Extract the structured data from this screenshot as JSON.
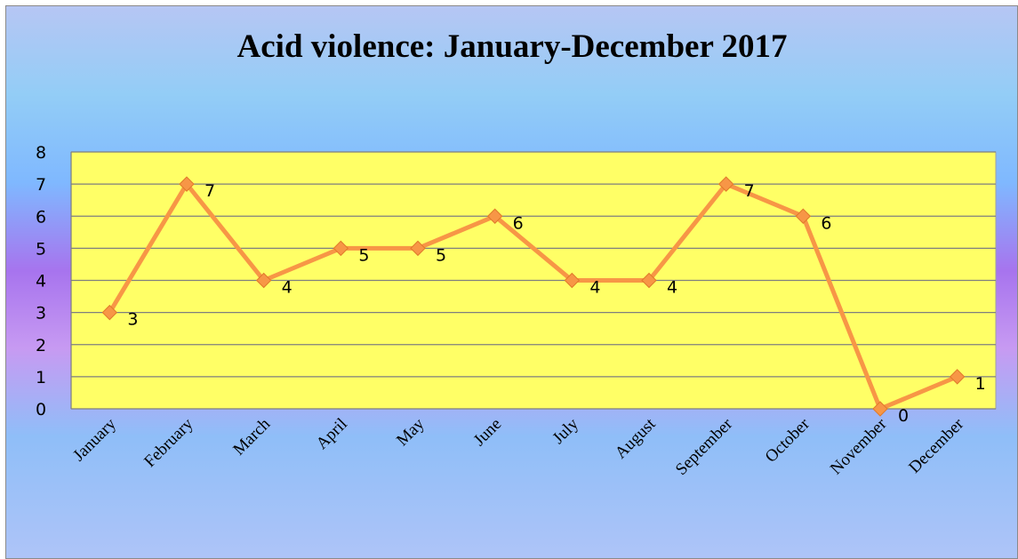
{
  "chart_data": {
    "type": "line",
    "title": "Acid violence: January-December 2017",
    "categories": [
      "January",
      "February",
      "March",
      "April",
      "May",
      "June",
      "July",
      "August",
      "September",
      "October",
      "November",
      "December"
    ],
    "series": [
      {
        "values": [
          3,
          7,
          4,
          5,
          5,
          6,
          4,
          4,
          7,
          6,
          0,
          1
        ]
      }
    ],
    "ylim": [
      0,
      8
    ],
    "yticks": [
      0,
      1,
      2,
      3,
      4,
      5,
      6,
      7,
      8
    ],
    "data_labels": true,
    "grid": true,
    "legend": "none",
    "colors": {
      "line": "#f79646",
      "plot_background": "#ffff66",
      "gridline": "#7f7f7f"
    }
  }
}
